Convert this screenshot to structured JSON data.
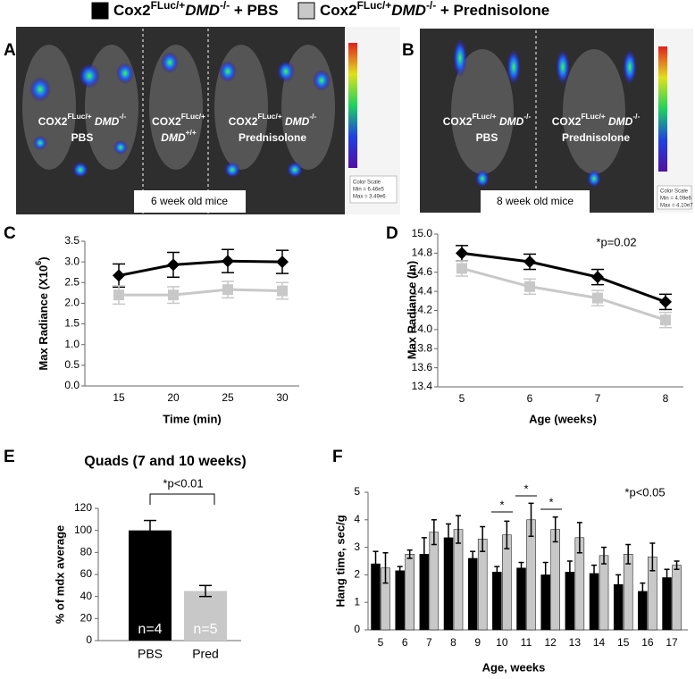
{
  "legend": [
    {
      "color": "#000000",
      "parts": [
        {
          "t": "Cox2"
        },
        {
          "t": "FLuc/+",
          "sup": true
        },
        {
          "t": "DMD",
          "italic": true
        },
        {
          "t": "-/-",
          "sup": true
        },
        {
          "t": " + PBS"
        }
      ]
    },
    {
      "color": "#c8c8c8",
      "parts": [
        {
          "t": "Cox2"
        },
        {
          "t": "FLuc/+",
          "sup": true
        },
        {
          "t": "DMD",
          "italic": true
        },
        {
          "t": "-/-",
          "sup": true
        },
        {
          "t": " + Prednisolone"
        }
      ]
    }
  ],
  "images": [
    {
      "panel": "A",
      "labels": [
        [
          [
            {
              "t": "COX2"
            },
            {
              "t": "FLuc/+",
              "sup": true
            },
            {
              "t": " DMD",
              "italic": true
            },
            {
              "t": "-/-",
              "sup": true
            }
          ],
          "PBS"
        ],
        [
          [
            {
              "t": "COX2"
            },
            {
              "t": "FLuc/+",
              "sup": true
            }
          ],
          [
            {
              "t": "DMD",
              "italic": true
            },
            {
              "t": "+/+",
              "sup": true
            }
          ]
        ],
        [
          [
            {
              "t": "COX2"
            },
            {
              "t": "FLuc/+",
              "sup": true
            },
            {
              "t": " DMD",
              "italic": true
            },
            {
              "t": "-/-",
              "sup": true
            }
          ],
          "Prednisolone"
        ]
      ],
      "caption": "6 week old mice",
      "scale": [
        "Color Scale",
        "Min = 6.46e5",
        "Max = 3.49e6"
      ]
    },
    {
      "panel": "B",
      "labels": [
        [
          [
            {
              "t": "COX2"
            },
            {
              "t": "FLuc/+",
              "sup": true
            },
            {
              "t": " DMD",
              "italic": true
            },
            {
              "t": "-/-",
              "sup": true
            }
          ],
          "PBS"
        ],
        [
          [
            {
              "t": "COX2"
            },
            {
              "t": "FLuc/+",
              "sup": true
            },
            {
              "t": " DMD",
              "italic": true
            },
            {
              "t": "-/-",
              "sup": true
            }
          ],
          "Prednisolone"
        ]
      ],
      "caption": "8 week old mice",
      "scale": [
        "Color Scale",
        "Min = 4.09e6",
        "Max = 4.10e7"
      ]
    }
  ],
  "chart_data": [
    {
      "type": "line",
      "panel": "C",
      "categories": [
        "15",
        "20",
        "25",
        "30"
      ],
      "x_label": "Time (min)",
      "y_label": [
        {
          "t": "Max Radiance (X10"
        },
        {
          "t": "6",
          "sup": true
        },
        {
          "t": ")"
        }
      ],
      "ylim": [
        0,
        3.5
      ],
      "yticks": [
        {
          "value": 0,
          "label": "0.0"
        },
        0.5,
        {
          "value": 1,
          "label": "1.0"
        },
        1.5,
        {
          "value": 2,
          "label": "2.0"
        },
        2.5,
        {
          "value": 3,
          "label": "3.0"
        },
        3.5
      ],
      "series": [
        {
          "color": "#000000",
          "marker": "diamond",
          "values": [
            2.67,
            2.93,
            3.02,
            3.0
          ],
          "errors": [
            0.28,
            0.3,
            0.28,
            0.28
          ]
        },
        {
          "color": "#c8c8c8",
          "marker": "square",
          "values": [
            2.2,
            2.2,
            2.33,
            2.3
          ],
          "errors": [
            0.22,
            0.2,
            0.2,
            0.2
          ]
        }
      ]
    },
    {
      "type": "line",
      "panel": "D",
      "categories": [
        "5",
        "6",
        "7",
        "8"
      ],
      "x_label": "Age (weeks)",
      "y_label": "Max Radiance (ln)",
      "annotations": [
        "*p=0.02"
      ],
      "ylim": [
        13.4,
        15.0
      ],
      "yticks": [
        13.4,
        13.6,
        13.8,
        {
          "value": 14.0,
          "label": "14.0"
        },
        14.2,
        14.4,
        14.6,
        14.8,
        {
          "value": 15.0,
          "label": "15.0"
        }
      ],
      "series": [
        {
          "color": "#000000",
          "marker": "diamond",
          "values": [
            14.8,
            14.71,
            14.55,
            14.29
          ],
          "errors": [
            0.08,
            0.08,
            0.08,
            0.08
          ]
        },
        {
          "color": "#c8c8c8",
          "marker": "square",
          "values": [
            14.64,
            14.45,
            14.33,
            14.1
          ],
          "errors": [
            0.08,
            0.08,
            0.08,
            0.08
          ]
        }
      ]
    },
    {
      "type": "bar",
      "panel": "E",
      "title": "Quads (7 and 10 weeks)",
      "categories": [
        "PBS",
        "Pred"
      ],
      "values": [
        100,
        45
      ],
      "errors": [
        9,
        5
      ],
      "colors": [
        "#000000",
        "#c8c8c8"
      ],
      "bar_texts": [
        "n=4",
        "n=5"
      ],
      "y_label": "% of mdx average",
      "annotations": [
        "*p<0.01"
      ],
      "ylim": [
        0,
        120
      ],
      "yticks": [
        0,
        20,
        40,
        60,
        80,
        100,
        120
      ]
    },
    {
      "type": "bar",
      "panel": "F",
      "categories": [
        "5",
        "6",
        "7",
        "8",
        "9",
        "10",
        "11",
        "12",
        "13",
        "14",
        "15",
        "16",
        "17"
      ],
      "x_label": "Age, weeks",
      "y_label": "Hang time, sec/g",
      "annotations": [
        "*p<0.05",
        "*",
        "*",
        "*"
      ],
      "ylim": [
        0,
        5
      ],
      "yticks": [
        0,
        1,
        2,
        3,
        4,
        5
      ],
      "series": [
        {
          "color": "#000000",
          "values": [
            2.4,
            2.15,
            2.75,
            3.35,
            2.6,
            2.1,
            2.25,
            2.0,
            2.1,
            2.05,
            1.65,
            1.4,
            1.9
          ],
          "errors": [
            0.45,
            0.15,
            0.6,
            0.5,
            0.25,
            0.2,
            0.2,
            0.45,
            0.4,
            0.3,
            0.35,
            0.3,
            0.3
          ]
        },
        {
          "color": "#c8c8c8",
          "values": [
            2.25,
            2.75,
            3.55,
            3.65,
            3.3,
            3.45,
            4.0,
            3.65,
            3.35,
            2.7,
            2.75,
            2.65,
            2.35
          ],
          "errors": [
            0.55,
            0.15,
            0.45,
            0.5,
            0.45,
            0.5,
            0.6,
            0.45,
            0.55,
            0.3,
            0.35,
            0.5,
            0.15
          ]
        }
      ]
    }
  ]
}
